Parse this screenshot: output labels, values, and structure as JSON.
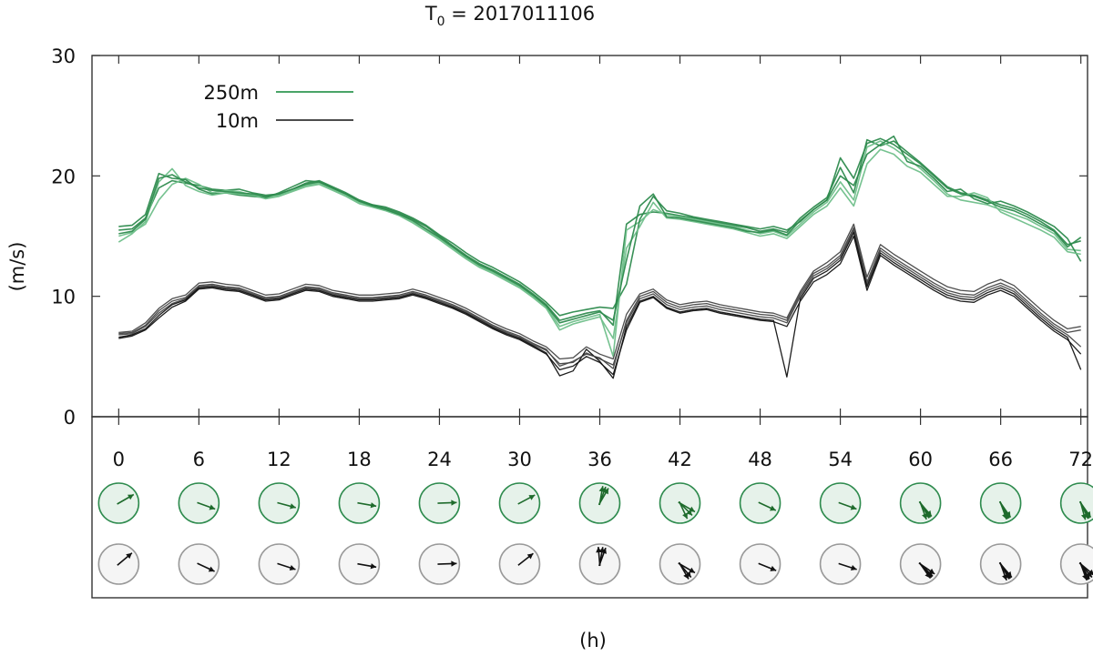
{
  "chart_data": {
    "type": "line",
    "title": "T",
    "title_subscript": "0",
    "title_suffix": " = 2017011106",
    "ylabel": "(m/s)",
    "xlabel": "(h)",
    "ylim": [
      0,
      30
    ],
    "yticks": [
      "0",
      "10",
      "20",
      "30"
    ],
    "xlim": [
      -2,
      72.5
    ],
    "xticks": [
      "0",
      "6",
      "12",
      "18",
      "24",
      "30",
      "36",
      "42",
      "48",
      "54",
      "60",
      "66",
      "72"
    ],
    "legend": {
      "position": "top-left",
      "entries": [
        {
          "label": "250m",
          "color": "#4aa468"
        },
        {
          "label": "10m",
          "color": "#111111"
        }
      ]
    },
    "colors": {
      "green": "#2e8b4e",
      "green_light": "#6fbf8a",
      "black": "#111111",
      "gray": "#444444"
    },
    "hours": [
      0,
      1,
      2,
      3,
      4,
      5,
      6,
      7,
      8,
      9,
      10,
      11,
      12,
      13,
      14,
      15,
      16,
      17,
      18,
      19,
      20,
      21,
      22,
      23,
      24,
      25,
      26,
      27,
      28,
      29,
      30,
      31,
      32,
      33,
      34,
      35,
      36,
      37,
      38,
      39,
      40,
      41,
      42,
      43,
      44,
      45,
      46,
      47,
      48,
      49,
      50,
      51,
      52,
      53,
      54,
      55,
      56,
      57,
      58,
      59,
      60,
      61,
      62,
      63,
      64,
      65,
      66,
      67,
      68,
      69,
      70,
      71,
      72
    ],
    "series": [
      {
        "name": "250m-1",
        "group": "250m",
        "values": [
          15.5,
          15.6,
          16.5,
          19.0,
          19.6,
          19.4,
          19.2,
          18.9,
          18.8,
          18.9,
          18.6,
          18.4,
          18.5,
          18.9,
          19.4,
          19.6,
          19.1,
          18.6,
          18.0,
          17.6,
          17.3,
          16.9,
          16.4,
          15.8,
          15.0,
          14.2,
          13.4,
          12.7,
          12.2,
          11.6,
          11.0,
          10.2,
          9.3,
          8.0,
          8.3,
          8.6,
          8.8,
          7.6,
          16.0,
          16.8,
          17.0,
          16.9,
          16.7,
          16.5,
          16.3,
          16.1,
          15.9,
          15.7,
          15.4,
          15.6,
          15.3,
          16.5,
          17.4,
          18.2,
          20.7,
          18.6,
          23.0,
          22.5,
          22.9,
          22.0,
          21.1,
          20.1,
          19.1,
          18.6,
          18.4,
          18.0,
          17.6,
          17.3,
          16.8,
          16.2,
          15.5,
          14.3,
          14.6
        ]
      },
      {
        "name": "250m-2",
        "group": "250m",
        "values": [
          15.0,
          15.3,
          16.0,
          18.0,
          19.3,
          19.8,
          19.3,
          18.6,
          18.8,
          18.7,
          18.4,
          18.2,
          18.4,
          18.8,
          19.2,
          19.4,
          18.9,
          18.4,
          17.8,
          17.5,
          17.2,
          16.8,
          16.2,
          15.5,
          14.8,
          14.0,
          13.2,
          12.5,
          12.0,
          11.4,
          10.8,
          10.0,
          9.1,
          7.5,
          7.9,
          8.2,
          8.5,
          5.0,
          15.5,
          16.2,
          17.2,
          16.8,
          16.6,
          16.4,
          16.2,
          16.0,
          15.8,
          15.5,
          15.2,
          15.4,
          15.0,
          16.0,
          17.0,
          17.8,
          19.5,
          18.0,
          22.4,
          22.9,
          22.3,
          21.5,
          20.6,
          19.6,
          18.5,
          18.0,
          17.8,
          17.6,
          17.2,
          16.8,
          16.4,
          15.8,
          15.2,
          13.9,
          13.8
        ]
      },
      {
        "name": "250m-3",
        "group": "250m",
        "values": [
          15.8,
          15.9,
          16.8,
          20.2,
          19.8,
          19.7,
          18.9,
          18.5,
          18.6,
          18.4,
          18.3,
          18.2,
          18.6,
          19.1,
          19.6,
          19.5,
          19.0,
          18.5,
          17.9,
          17.6,
          17.4,
          17.0,
          16.5,
          15.9,
          15.1,
          14.4,
          13.6,
          12.9,
          12.4,
          11.8,
          11.2,
          10.4,
          9.5,
          8.4,
          8.7,
          8.9,
          9.1,
          9.0,
          11.0,
          16.4,
          18.3,
          17.1,
          16.9,
          16.6,
          16.4,
          16.2,
          16.0,
          15.8,
          15.6,
          15.8,
          15.5,
          16.2,
          17.2,
          18.0,
          20.0,
          19.2,
          21.8,
          22.6,
          23.3,
          21.2,
          20.8,
          19.8,
          18.7,
          18.9,
          18.1,
          17.7,
          17.9,
          17.5,
          17.0,
          16.4,
          15.8,
          14.8,
          12.9
        ]
      },
      {
        "name": "250m-4",
        "group": "250m",
        "values": [
          14.5,
          15.2,
          16.2,
          19.5,
          20.6,
          19.2,
          18.7,
          18.4,
          18.6,
          18.5,
          18.4,
          18.1,
          18.3,
          18.7,
          19.1,
          19.3,
          18.8,
          18.3,
          17.7,
          17.4,
          17.1,
          16.7,
          16.1,
          15.4,
          14.7,
          13.9,
          13.1,
          12.4,
          11.9,
          11.3,
          10.7,
          9.9,
          9.0,
          7.2,
          7.7,
          8.0,
          8.3,
          6.5,
          14.0,
          15.8,
          17.8,
          16.5,
          16.4,
          16.2,
          16.0,
          15.8,
          15.6,
          15.3,
          15.0,
          15.2,
          14.8,
          15.8,
          16.8,
          17.5,
          19.0,
          17.5,
          21.0,
          22.2,
          21.8,
          20.8,
          20.3,
          19.3,
          18.3,
          18.3,
          18.6,
          18.2,
          17.0,
          16.5,
          16.0,
          15.5,
          14.9,
          13.7,
          13.5
        ]
      },
      {
        "name": "250m-5",
        "group": "250m",
        "values": [
          15.2,
          15.4,
          16.4,
          19.8,
          20.1,
          19.5,
          19.0,
          18.8,
          18.7,
          18.6,
          18.5,
          18.3,
          18.5,
          18.9,
          19.3,
          19.5,
          19.0,
          18.5,
          17.9,
          17.5,
          17.2,
          16.8,
          16.3,
          15.6,
          14.9,
          14.1,
          13.3,
          12.6,
          12.1,
          11.5,
          10.9,
          10.1,
          9.2,
          7.8,
          8.1,
          8.4,
          8.7,
          8.0,
          13.0,
          17.5,
          18.5,
          16.6,
          16.5,
          16.3,
          16.1,
          15.9,
          15.7,
          15.4,
          15.3,
          15.5,
          15.1,
          16.3,
          17.2,
          18.0,
          21.5,
          19.8,
          22.7,
          23.1,
          22.6,
          21.8,
          21.0,
          20.0,
          19.0,
          18.5,
          18.3,
          17.9,
          17.4,
          17.1,
          16.6,
          16.0,
          15.4,
          14.1,
          14.9
        ]
      },
      {
        "name": "10m-1",
        "group": "10m",
        "values": [
          6.8,
          6.9,
          7.5,
          8.6,
          9.4,
          9.8,
          10.8,
          10.9,
          10.7,
          10.6,
          10.2,
          9.8,
          9.9,
          10.3,
          10.7,
          10.6,
          10.2,
          10.0,
          9.8,
          9.8,
          9.9,
          10.0,
          10.3,
          10.0,
          9.6,
          9.2,
          8.7,
          8.1,
          7.5,
          7.0,
          6.6,
          6.0,
          5.5,
          4.4,
          4.5,
          5.3,
          4.8,
          4.3,
          7.8,
          9.8,
          10.2,
          9.3,
          8.9,
          9.1,
          9.2,
          8.9,
          8.7,
          8.5,
          8.3,
          8.2,
          7.8,
          10.0,
          11.7,
          12.3,
          13.2,
          15.5,
          11.0,
          13.8,
          13.0,
          12.3,
          11.6,
          10.9,
          10.3,
          10.0,
          9.9,
          10.5,
          10.9,
          10.4,
          9.4,
          8.4,
          7.5,
          6.8,
          5.8
        ]
      },
      {
        "name": "10m-2",
        "group": "10m",
        "values": [
          6.5,
          6.7,
          7.2,
          8.2,
          9.1,
          9.6,
          10.6,
          10.7,
          10.5,
          10.4,
          10.0,
          9.6,
          9.7,
          10.1,
          10.5,
          10.4,
          10.0,
          9.8,
          9.6,
          9.6,
          9.7,
          9.8,
          10.1,
          9.8,
          9.4,
          9.0,
          8.5,
          7.9,
          7.3,
          6.8,
          6.4,
          5.8,
          5.2,
          3.9,
          4.2,
          5.0,
          4.5,
          3.5,
          7.2,
          9.5,
          9.9,
          9.0,
          8.6,
          8.8,
          8.9,
          8.6,
          8.4,
          8.2,
          8.0,
          7.9,
          7.5,
          9.6,
          11.2,
          11.8,
          12.7,
          15.0,
          10.5,
          13.4,
          12.6,
          11.9,
          11.2,
          10.5,
          9.9,
          9.6,
          9.5,
          10.1,
          10.5,
          10.0,
          9.0,
          8.0,
          7.1,
          6.4,
          5.2
        ]
      },
      {
        "name": "10m-3",
        "group": "10m",
        "values": [
          7.0,
          7.1,
          7.8,
          9.0,
          9.8,
          10.1,
          11.1,
          11.2,
          11.0,
          10.9,
          10.5,
          10.1,
          10.2,
          10.6,
          11.0,
          10.9,
          10.5,
          10.3,
          10.1,
          10.1,
          10.2,
          10.3,
          10.6,
          10.3,
          9.9,
          9.5,
          9.0,
          8.4,
          7.8,
          7.3,
          6.9,
          6.3,
          5.8,
          4.8,
          4.9,
          5.8,
          5.2,
          4.8,
          8.5,
          10.2,
          10.6,
          9.7,
          9.3,
          9.5,
          9.6,
          9.3,
          9.1,
          8.9,
          8.7,
          8.6,
          8.2,
          10.4,
          12.1,
          12.8,
          13.7,
          16.0,
          11.6,
          14.3,
          13.5,
          12.8,
          12.1,
          11.4,
          10.8,
          10.5,
          10.4,
          11.0,
          11.4,
          10.9,
          9.9,
          8.9,
          8.0,
          7.3,
          7.5
        ]
      },
      {
        "name": "10m-4",
        "group": "10m",
        "values": [
          6.6,
          6.8,
          7.3,
          8.4,
          9.3,
          9.7,
          10.7,
          10.8,
          10.6,
          10.5,
          10.1,
          9.7,
          9.8,
          10.2,
          10.6,
          10.5,
          10.1,
          9.9,
          9.7,
          9.7,
          9.8,
          9.9,
          10.2,
          9.9,
          9.5,
          9.1,
          8.6,
          8.0,
          7.4,
          6.9,
          6.5,
          5.9,
          5.3,
          3.4,
          3.8,
          5.6,
          4.6,
          3.2,
          7.5,
          9.6,
          10.0,
          9.1,
          8.7,
          8.9,
          9.0,
          8.7,
          8.5,
          8.3,
          8.1,
          8.0,
          3.3,
          9.8,
          11.5,
          12.1,
          13.0,
          15.3,
          10.8,
          13.6,
          12.8,
          12.1,
          11.4,
          10.7,
          10.1,
          9.8,
          9.7,
          10.3,
          10.7,
          10.2,
          9.2,
          8.2,
          7.3,
          6.6,
          3.9
        ]
      },
      {
        "name": "10m-5",
        "group": "10m",
        "values": [
          6.9,
          7.0,
          7.6,
          8.8,
          9.6,
          9.9,
          10.9,
          11.0,
          10.8,
          10.7,
          10.3,
          9.9,
          10.0,
          10.4,
          10.8,
          10.7,
          10.3,
          10.1,
          9.9,
          9.9,
          10.0,
          10.1,
          10.4,
          10.1,
          9.7,
          9.3,
          8.8,
          8.2,
          7.6,
          7.1,
          6.7,
          6.1,
          5.6,
          4.2,
          4.6,
          5.2,
          4.9,
          4.0,
          8.0,
          10.0,
          10.4,
          9.5,
          9.1,
          9.3,
          9.4,
          9.1,
          8.9,
          8.7,
          8.5,
          8.4,
          8.0,
          10.2,
          11.9,
          12.5,
          13.4,
          15.7,
          11.2,
          14.0,
          13.2,
          12.5,
          11.8,
          11.1,
          10.5,
          10.2,
          10.1,
          10.7,
          11.1,
          10.6,
          9.6,
          8.6,
          7.7,
          7.0,
          7.2
        ]
      }
    ],
    "direction_panels": {
      "hours": [
        "0",
        "6",
        "12",
        "18",
        "24",
        "30",
        "36",
        "42",
        "48",
        "54",
        "60",
        "66",
        "72"
      ],
      "rows": [
        {
          "name": "250m",
          "fill": "#e6f2ea",
          "stroke": "#2e8b4e",
          "arrow_color": "#1e6b2c",
          "arrows_deg": [
            [
              60
            ],
            [
              110
            ],
            [
              105
            ],
            [
              100
            ],
            [
              88
            ],
            [
              62
            ],
            [
              30,
              10,
              20
            ],
            [
              155,
              120,
              135
            ],
            [
              115
            ],
            [
              110
            ],
            [
              150,
              160,
              145,
              140
            ],
            [
              150,
              155,
              160,
              145
            ],
            [
              145,
              155,
              165,
              150
            ]
          ]
        },
        {
          "name": "10m",
          "fill": "#f5f5f5",
          "stroke": "#999999",
          "arrow_color": "#111111",
          "arrows_deg": [
            [
              50
            ],
            [
              115
            ],
            [
              108
            ],
            [
              100
            ],
            [
              88
            ],
            [
              52
            ],
            [
              20,
              -5,
              10
            ],
            [
              150,
              120,
              140
            ],
            [
              112
            ],
            [
              108
            ],
            [
              145,
              135,
              125,
              140
            ],
            [
              150,
              140,
              160,
              145
            ],
            [
              140,
              150,
              160,
              130,
              155
            ]
          ]
        }
      ]
    }
  }
}
